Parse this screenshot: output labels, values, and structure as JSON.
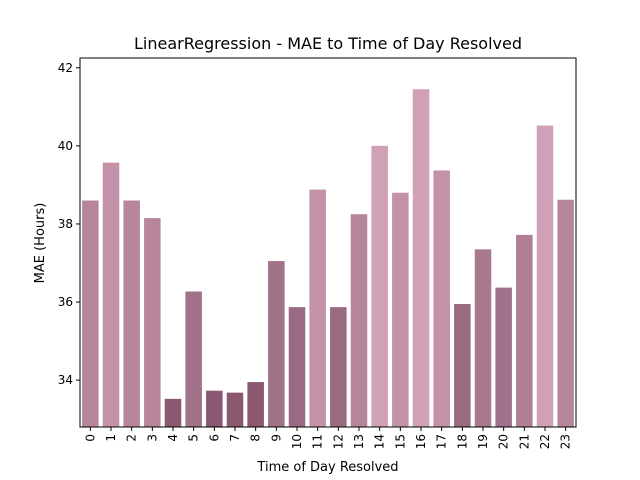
{
  "chart_data": {
    "type": "bar",
    "title": "LinearRegression - MAE to Time of Day Resolved",
    "xlabel": "Time of Day Resolved",
    "ylabel": "MAE (Hours)",
    "categories": [
      "0",
      "1",
      "2",
      "3",
      "4",
      "5",
      "6",
      "7",
      "8",
      "9",
      "10",
      "11",
      "12",
      "13",
      "14",
      "15",
      "16",
      "17",
      "18",
      "19",
      "20",
      "21",
      "22",
      "23"
    ],
    "values": [
      38.6,
      39.57,
      38.6,
      38.15,
      33.52,
      36.27,
      33.73,
      33.68,
      33.95,
      37.05,
      35.87,
      38.88,
      35.87,
      38.25,
      40.0,
      38.8,
      41.45,
      39.37,
      35.95,
      37.35,
      36.37,
      37.72,
      40.52,
      38.62
    ],
    "colors": [
      "#b7869d",
      "#c392a9",
      "#b7869d",
      "#b7869d",
      "#8c5771",
      "#a1728a",
      "#8c5771",
      "#8c5771",
      "#8c5771",
      "#a1728a",
      "#9a6a82",
      "#c392a9",
      "#9a6a82",
      "#b7869d",
      "#d0a1b6",
      "#c392a9",
      "#d0a1b6",
      "#c392a9",
      "#9a6a82",
      "#a9798f",
      "#a1728a",
      "#b07f96",
      "#d0a1b6",
      "#b7869d"
    ],
    "ylim": [
      32.8,
      42.25
    ],
    "yticks": [
      34,
      36,
      38,
      40,
      42
    ],
    "grid": false
  }
}
